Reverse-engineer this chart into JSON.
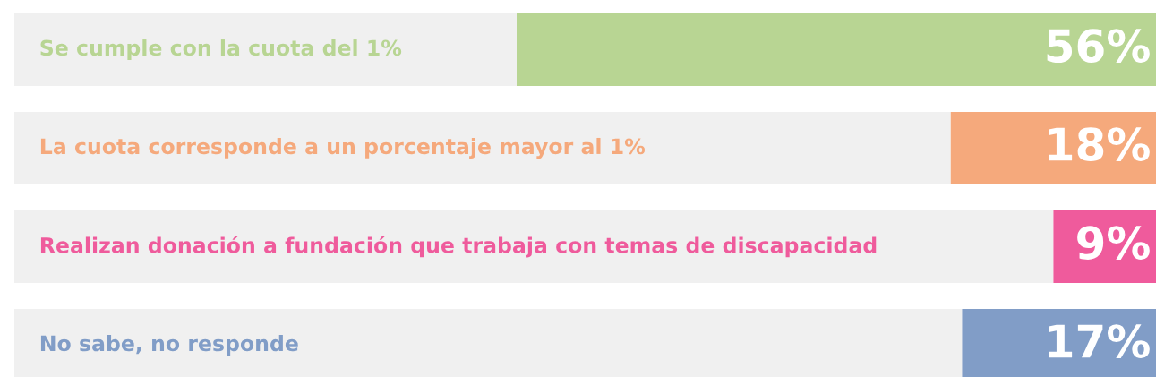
{
  "chart_data": {
    "type": "bar",
    "orientation": "horizontal",
    "stacked": true,
    "categories": [
      "Se cumple con la cuota del 1%",
      "La cuota corresponde a un porcentaje mayor al 1%",
      "Realizan donación a fundación que trabaja con temas de discapacidad",
      "No sabe, no responde"
    ],
    "series": [
      {
        "colors": [
          "#b8d593",
          "#f5a97c",
          "#ef5b9c",
          "#819dc7"
        ],
        "values": [
          56,
          18,
          9,
          17
        ],
        "value_labels": [
          "56%",
          "18%",
          "9%",
          "17%"
        ]
      },
      {
        "color": "#f0f0f0",
        "values": [
          44,
          82,
          91,
          83
        ]
      }
    ],
    "xlim": [
      100,
      0
    ]
  }
}
